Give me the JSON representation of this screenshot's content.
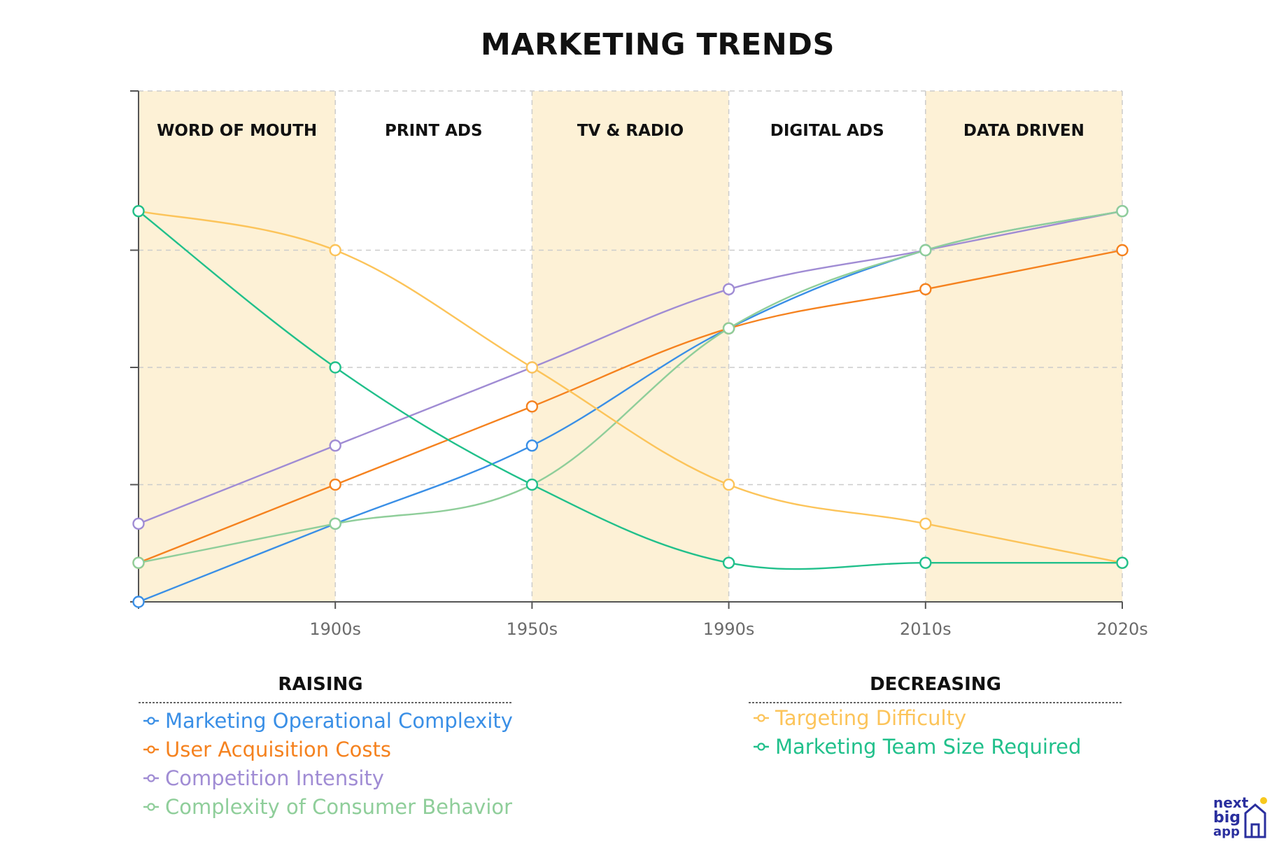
{
  "chart_data": {
    "type": "line",
    "title": "MARKETING TRENDS",
    "eras": [
      "WORD OF MOUTH",
      "PRINT ADS",
      "TV & RADIO",
      "DIGITAL ADS",
      "DATA DRIVEN"
    ],
    "x_tick_labels": [
      "1900s",
      "1950s",
      "1990s",
      "2010s",
      "2020s"
    ],
    "xlabel": "",
    "ylabel": "",
    "ylim": [
      0,
      12
    ],
    "y_ticks": [
      0,
      3,
      6,
      9
    ],
    "grid": true,
    "x": [
      0,
      1,
      2,
      3,
      4,
      5
    ],
    "series": [
      {
        "name": "Marketing Operational Complexity",
        "group": "raising",
        "color": "#3a8fe6",
        "values": [
          0,
          2,
          4,
          7,
          9,
          10
        ]
      },
      {
        "name": "User Acquisition Costs",
        "group": "raising",
        "color": "#f5821f",
        "values": [
          1,
          3,
          5,
          7,
          8,
          9
        ]
      },
      {
        "name": "Competition Intensity",
        "group": "raising",
        "color": "#a08cd4",
        "values": [
          2,
          4,
          6,
          8,
          9,
          10
        ]
      },
      {
        "name": "Complexity of Consumer Behavior",
        "group": "raising",
        "color": "#8fce9a",
        "values": [
          1,
          2,
          3,
          7,
          9,
          10
        ]
      },
      {
        "name": "Targeting Difficulty",
        "group": "decreasing",
        "color": "#fcc45a",
        "values": [
          10,
          9,
          6,
          3,
          2,
          1
        ]
      },
      {
        "name": "Marketing Team Size Required",
        "group": "decreasing",
        "color": "#21c08b",
        "values": [
          10,
          6,
          3,
          1,
          1,
          1
        ]
      }
    ]
  },
  "legend": {
    "raising_heading": "RAISING",
    "decreasing_heading": "DECREASING"
  },
  "logo": {
    "line1": "next",
    "line2": "big",
    "line3": "app"
  },
  "colors": {
    "band": "#fdf1d6",
    "grid": "#cccccc",
    "axis": "#555555"
  }
}
